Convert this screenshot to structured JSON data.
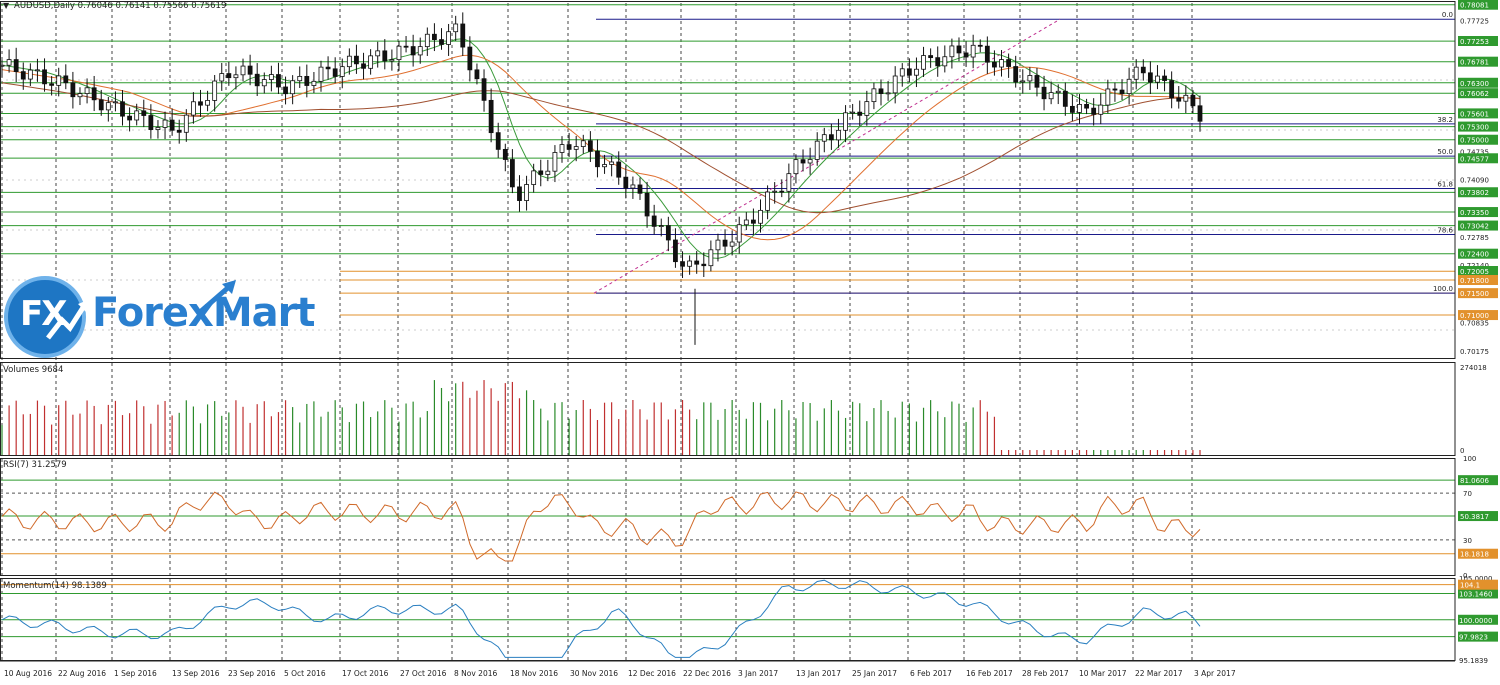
{
  "colors": {
    "bull": "#2a8a2a",
    "bear": "#c03030",
    "fib": "#1a1a8a",
    "level_green": "#2f9a2f",
    "level_orange": "#e2912c",
    "ma_green": "#3a9a3a",
    "ma_orange": "#e07030",
    "ma_brown": "#a05030",
    "rsi": "#d06a2a",
    "momentum": "#2a7fc0",
    "grid": "#444444",
    "brand_blue": "#1e76c4"
  },
  "header": {
    "symbol_line": "AUDUSD,Daily  0.76046 0.76141 0.75566 0.75619",
    "arrow": "▼"
  },
  "logo": {
    "fx": "FX",
    "name": "ForexMart"
  },
  "price_panel": {
    "labels": [
      "0.78081",
      "0.77725",
      "0.77253",
      "0.76781",
      "0.76300",
      "0.76062",
      "0.75601",
      "0.75300",
      "0.75000",
      "0.74735",
      "0.74577",
      "0.74090",
      "0.73802",
      "0.73350",
      "0.73042",
      "0.72785",
      "0.72400",
      "0.72140",
      "0.72005",
      "0.71800",
      "0.71500",
      "0.71000",
      "0.70835",
      "0.70175"
    ],
    "boxed_labels": [
      "0.78081",
      "0.77253",
      "0.76781",
      "0.76300",
      "0.76062",
      "0.75601",
      "0.75300",
      "0.75000",
      "0.74577",
      "0.73802",
      "0.73350",
      "0.73042",
      "0.72400",
      "0.72005",
      "0.71800",
      "0.71500",
      "0.71000"
    ],
    "fib_labels": [
      "0.0",
      "38.2",
      "50.0",
      "61.8",
      "78.6",
      "100.0"
    ]
  },
  "volumes": {
    "title": "Volumes 9684",
    "max_label": "274018",
    "zero_label": "0"
  },
  "rsi": {
    "title": "RSI(7) 31.2579",
    "levels": [
      "100",
      "81.0606",
      "70",
      "50.3817",
      "30",
      "18.1818",
      "0"
    ]
  },
  "momentum": {
    "title": "Momentum(14) 98.1389",
    "levels": [
      "105.0000",
      "103.1460",
      "100.0000",
      "97.9823",
      "95.1839"
    ],
    "orange_label": "104.1"
  },
  "x_axis": {
    "dates": [
      "10 Aug 2016",
      "22 Aug 2016",
      "1 Sep 2016",
      "13 Sep 2016",
      "23 Sep 2016",
      "5 Oct 2016",
      "17 Oct 2016",
      "27 Oct 2016",
      "8 Nov 2016",
      "18 Nov 2016",
      "30 Nov 2016",
      "12 Dec 2016",
      "22 Dec 2016",
      "3 Jan 2017",
      "13 Jan 2017",
      "25 Jan 2017",
      "6 Feb 2017",
      "16 Feb 2017",
      "28 Feb 2017",
      "10 Mar 2017",
      "22 Mar 2017",
      "3 Apr 2017"
    ]
  },
  "chart_data": {
    "type": "candlestick",
    "symbol": "AUDUSD",
    "timeframe": "Daily",
    "last_bar": {
      "open": 0.76046,
      "high": 0.76141,
      "low": 0.75566,
      "close": 0.75619
    },
    "ylim": [
      0.7002,
      0.7812
    ],
    "x_categories": [
      "10 Aug 2016",
      "22 Aug 2016",
      "1 Sep 2016",
      "13 Sep 2016",
      "23 Sep 2016",
      "5 Oct 2016",
      "17 Oct 2016",
      "27 Oct 2016",
      "8 Nov 2016",
      "18 Nov 2016",
      "30 Nov 2016",
      "12 Dec 2016",
      "22 Dec 2016",
      "3 Jan 2017",
      "13 Jan 2017",
      "25 Jan 2017",
      "6 Feb 2017",
      "16 Feb 2017",
      "28 Feb 2017",
      "10 Mar 2017",
      "22 Mar 2017",
      "3 Apr 2017"
    ],
    "close_at_dates": [
      0.767,
      0.763,
      0.757,
      0.752,
      0.766,
      0.762,
      0.767,
      0.77,
      0.775,
      0.737,
      0.75,
      0.74,
      0.72,
      0.73,
      0.745,
      0.757,
      0.767,
      0.771,
      0.763,
      0.756,
      0.766,
      0.756
    ],
    "horizontal_levels_green": [
      0.7808,
      0.7725,
      0.7678,
      0.763,
      0.7606,
      0.756,
      0.753,
      0.75,
      0.7458,
      0.738,
      0.7335,
      0.7304,
      0.724
    ],
    "horizontal_levels_orange": [
      0.72,
      0.718,
      0.715,
      0.71
    ],
    "fibonacci": {
      "from": 0.715,
      "to": 0.7775,
      "levels": [
        0.0,
        38.2,
        50.0,
        61.8,
        78.6,
        100.0
      ]
    },
    "volume": {
      "max": 274018
    },
    "rsi_period": 7,
    "rsi_last": 31.2579,
    "rsi_levels": [
      81.0606,
      70,
      50.3817,
      30,
      18.1818
    ],
    "momentum_period": 14,
    "momentum_last": 98.1389,
    "momentum_levels": [
      103.146,
      100.0,
      97.9823
    ]
  }
}
